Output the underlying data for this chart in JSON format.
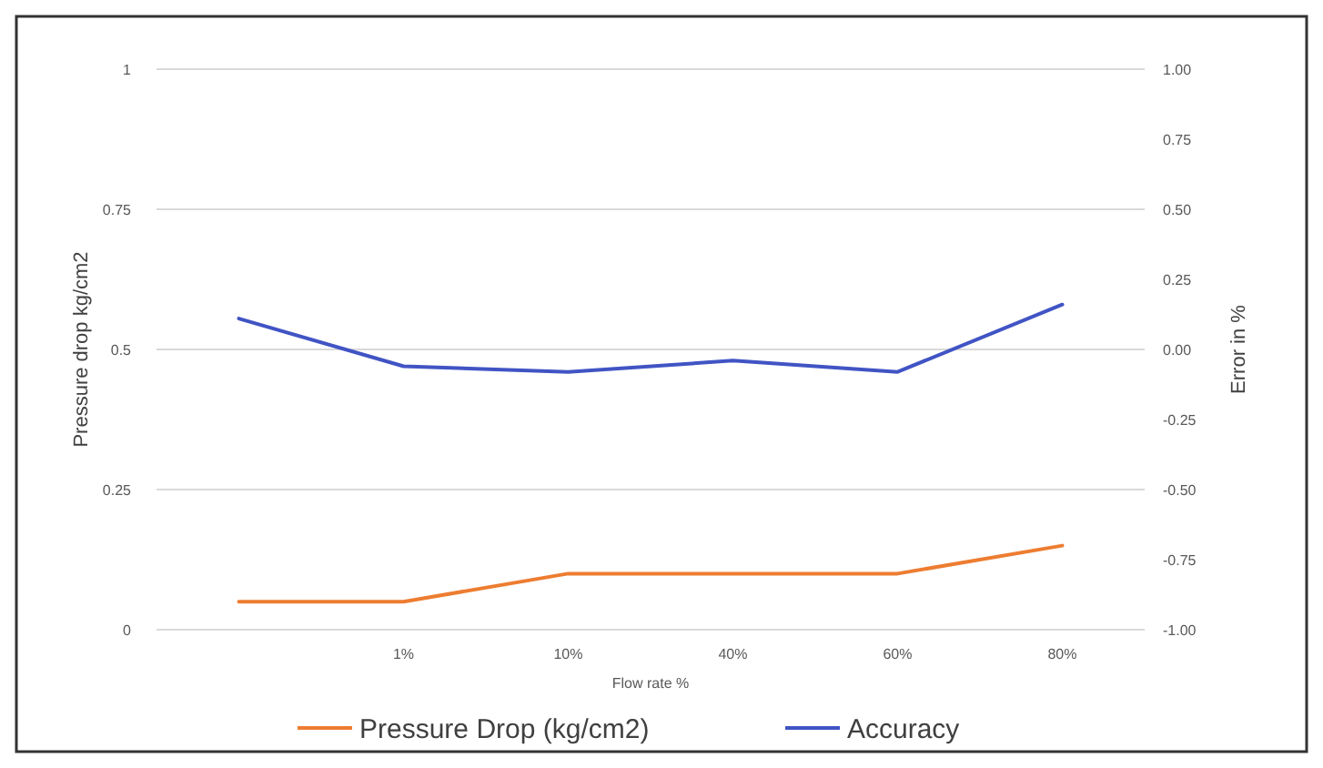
{
  "chart_data": {
    "type": "line",
    "xlabel": "Flow rate %",
    "ylabel": "Pressure drop kg/cm2",
    "y2label": "Error in %",
    "categories": [
      null,
      "1%",
      "10%",
      "40%",
      "60%",
      "80%"
    ],
    "series": [
      {
        "name": "Pressure Drop (kg/cm2)",
        "color": "#ed7d31",
        "values": [
          0.05,
          0.05,
          0.1,
          0.1,
          0.1,
          0.15
        ]
      },
      {
        "name": "Accuracy",
        "color": "#4154c4",
        "axis": "y2",
        "values": [
          0.11,
          -0.06,
          -0.08,
          -0.04,
          -0.08,
          0.16
        ]
      }
    ],
    "ylim": [
      0,
      1
    ],
    "yticks": [
      0,
      0.25,
      0.5,
      0.75,
      1
    ],
    "y2lim": [
      -1,
      1
    ],
    "y2ticks": [
      {
        "value": -1,
        "label": "-1.00"
      },
      {
        "value": -0.75,
        "label": "-0.75"
      },
      {
        "value": -0.5,
        "label": "-0.50"
      },
      {
        "value": -0.25,
        "label": "-0.25"
      },
      {
        "value": 0,
        "label": "0.00"
      },
      {
        "value": 0.25,
        "label": "0.25"
      },
      {
        "value": 0.5,
        "label": "0.50"
      },
      {
        "value": 0.75,
        "label": "0.75"
      },
      {
        "value": 1,
        "label": "1.00"
      }
    ],
    "grid": "y",
    "legend": "bottom",
    "marker": "none",
    "line_style": "solid"
  }
}
